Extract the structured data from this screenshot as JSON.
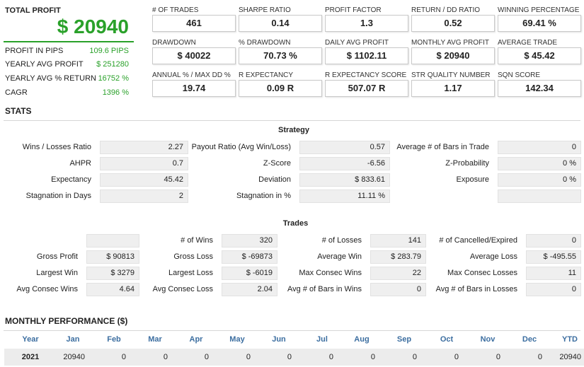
{
  "summary": {
    "total_profit_label": "TOTAL PROFIT",
    "total_profit_value": "$ 20940",
    "rows": [
      {
        "label": "PROFIT IN PIPS",
        "value": "109.6 PIPS"
      },
      {
        "label": "YEARLY AVG PROFIT",
        "value": "$ 251280"
      },
      {
        "label": "YEARLY AVG % RETURN",
        "value": "16752 %"
      },
      {
        "label": "CAGR",
        "value": "1396 %"
      }
    ]
  },
  "metrics": [
    {
      "label": "# OF TRADES",
      "value": "461"
    },
    {
      "label": "SHARPE RATIO",
      "value": "0.14"
    },
    {
      "label": "PROFIT FACTOR",
      "value": "1.3"
    },
    {
      "label": "RETURN / DD RATIO",
      "value": "0.52"
    },
    {
      "label": "WINNING PERCENTAGE",
      "value": "69.41 %"
    },
    {
      "label": "DRAWDOWN",
      "value": "$ 40022"
    },
    {
      "label": "% DRAWDOWN",
      "value": "70.73 %"
    },
    {
      "label": "DAILY AVG PROFIT",
      "value": "$ 1102.11"
    },
    {
      "label": "MONTHLY AVG PROFIT",
      "value": "$ 20940"
    },
    {
      "label": "AVERAGE TRADE",
      "value": "$ 45.42"
    },
    {
      "label": "ANNUAL % / MAX DD %",
      "value": "19.74"
    },
    {
      "label": "R EXPECTANCY",
      "value": "0.09 R"
    },
    {
      "label": "R EXPECTANCY SCORE",
      "value": "507.07 R"
    },
    {
      "label": "STR QUALITY NUMBER",
      "value": "1.17"
    },
    {
      "label": "SQN SCORE",
      "value": "142.34"
    }
  ],
  "stats": {
    "title": "STATS",
    "strategy": {
      "title": "Strategy",
      "rows": [
        [
          {
            "label": "Wins / Losses Ratio",
            "value": "2.27"
          },
          {
            "label": "Payout Ratio (Avg Win/Loss)",
            "value": "0.57"
          },
          {
            "label": "Average # of Bars in Trade",
            "value": "0"
          }
        ],
        [
          {
            "label": "AHPR",
            "value": "0.7"
          },
          {
            "label": "Z-Score",
            "value": "-6.56"
          },
          {
            "label": "Z-Probability",
            "value": "0 %"
          }
        ],
        [
          {
            "label": "Expectancy",
            "value": "45.42"
          },
          {
            "label": "Deviation",
            "value": "$ 833.61"
          },
          {
            "label": "Exposure",
            "value": "0 %"
          }
        ],
        [
          {
            "label": "Stagnation in Days",
            "value": "2"
          },
          {
            "label": "Stagnation in %",
            "value": "11.11 %"
          },
          {
            "label": "",
            "value": ""
          }
        ]
      ]
    },
    "trades": {
      "title": "Trades",
      "rows": [
        [
          {
            "label": "",
            "value": ""
          },
          {
            "label": "# of Wins",
            "value": "320"
          },
          {
            "label": "# of Losses",
            "value": "141"
          },
          {
            "label": "# of Cancelled/Expired",
            "value": "0"
          }
        ],
        [
          {
            "label": "Gross Profit",
            "value": "$ 90813"
          },
          {
            "label": "Gross Loss",
            "value": "$ -69873"
          },
          {
            "label": "Average Win",
            "value": "$ 283.79"
          },
          {
            "label": "Average Loss",
            "value": "$ -495.55"
          }
        ],
        [
          {
            "label": "Largest Win",
            "value": "$ 3279"
          },
          {
            "label": "Largest Loss",
            "value": "$ -6019"
          },
          {
            "label": "Max Consec Wins",
            "value": "22"
          },
          {
            "label": "Max Consec Losses",
            "value": "11"
          }
        ],
        [
          {
            "label": "Avg Consec Wins",
            "value": "4.64"
          },
          {
            "label": "Avg Consec Loss",
            "value": "2.04"
          },
          {
            "label": "Avg # of Bars in Wins",
            "value": "0"
          },
          {
            "label": "Avg # of Bars in Losses",
            "value": "0"
          }
        ]
      ]
    }
  },
  "monthly": {
    "title": "MONTHLY PERFORMANCE ($)",
    "headers": [
      "Year",
      "Jan",
      "Feb",
      "Mar",
      "Apr",
      "May",
      "Jun",
      "Jul",
      "Aug",
      "Sep",
      "Oct",
      "Nov",
      "Dec",
      "YTD"
    ],
    "row": [
      "2021",
      "20940",
      "0",
      "0",
      "0",
      "0",
      "0",
      "0",
      "0",
      "0",
      "0",
      "0",
      "0",
      "20940"
    ]
  }
}
